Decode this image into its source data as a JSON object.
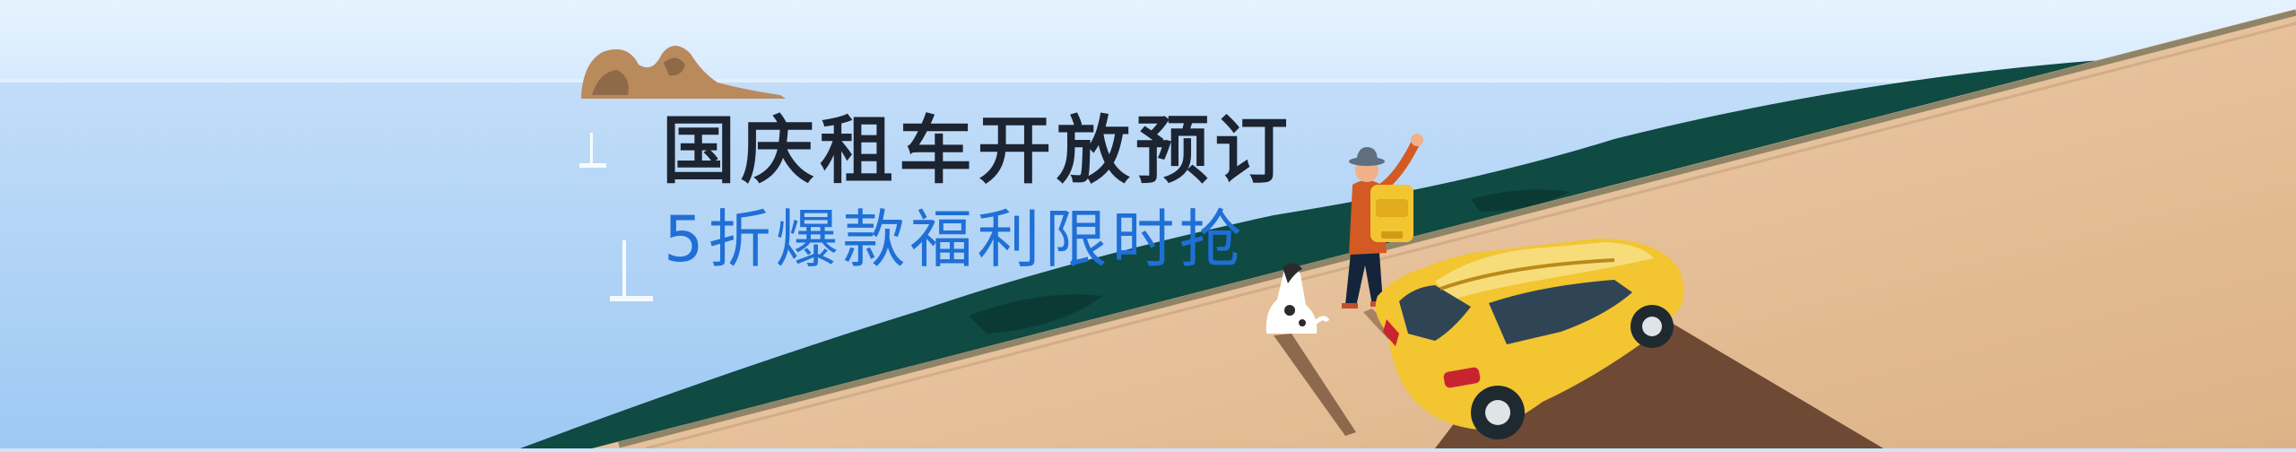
{
  "banner": {
    "headline": "国庆租车开放预订",
    "subline": "5折爆款福利限时抢"
  },
  "colors": {
    "sky": "#dbeeff",
    "sea": "#a9d0f6",
    "hill": "#0f4a43",
    "road": "#e6c29b",
    "car": "#f2c531",
    "headline": "#1c2431",
    "subline": "#1f6fd6"
  },
  "illustration": {
    "elements": [
      "island",
      "sailboats",
      "green-hill",
      "sand-road",
      "hiker",
      "backpack",
      "dog",
      "yellow-car"
    ]
  }
}
